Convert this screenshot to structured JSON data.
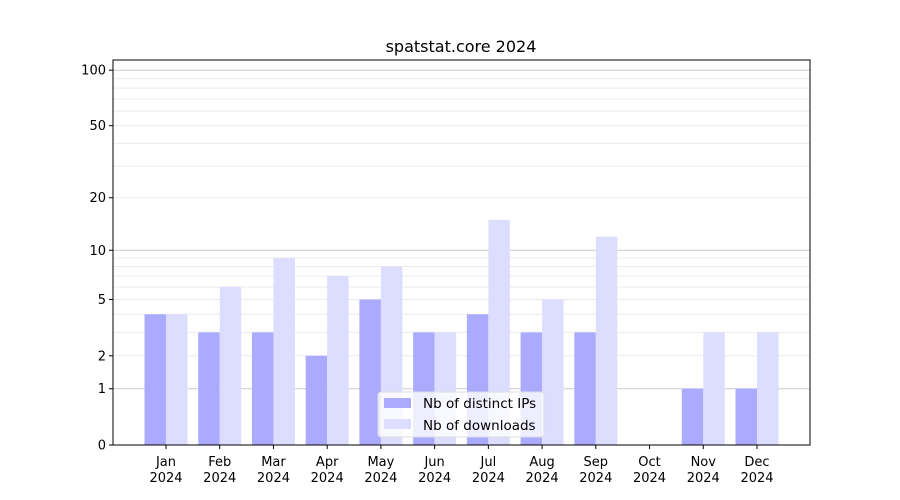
{
  "chart_data": {
    "type": "bar",
    "title": "spatstat.core 2024",
    "xlabel": "",
    "ylabel": "",
    "yscale": "symlog (log10(1+y))",
    "ylim": [
      0,
      113
    ],
    "yticks": [
      0,
      1,
      2,
      5,
      10,
      20,
      50,
      100
    ],
    "grid": true,
    "legend_position": "bottom-center",
    "categories": [
      "Jan\n2024",
      "Feb\n2024",
      "Mar\n2024",
      "Apr\n2024",
      "May\n2024",
      "Jun\n2024",
      "Jul\n2024",
      "Aug\n2024",
      "Sep\n2024",
      "Oct\n2024",
      "Nov\n2024",
      "Dec\n2024"
    ],
    "series": [
      {
        "name": "Nb of distinct IPs",
        "color": "#aaaaff",
        "values": [
          4,
          3,
          3,
          2,
          5,
          3,
          4,
          3,
          3,
          0,
          1,
          1
        ]
      },
      {
        "name": "Nb of downloads",
        "color": "#ddddff",
        "values": [
          4,
          6,
          9,
          7,
          8,
          3,
          15,
          5,
          12,
          0,
          3,
          3
        ]
      }
    ]
  }
}
